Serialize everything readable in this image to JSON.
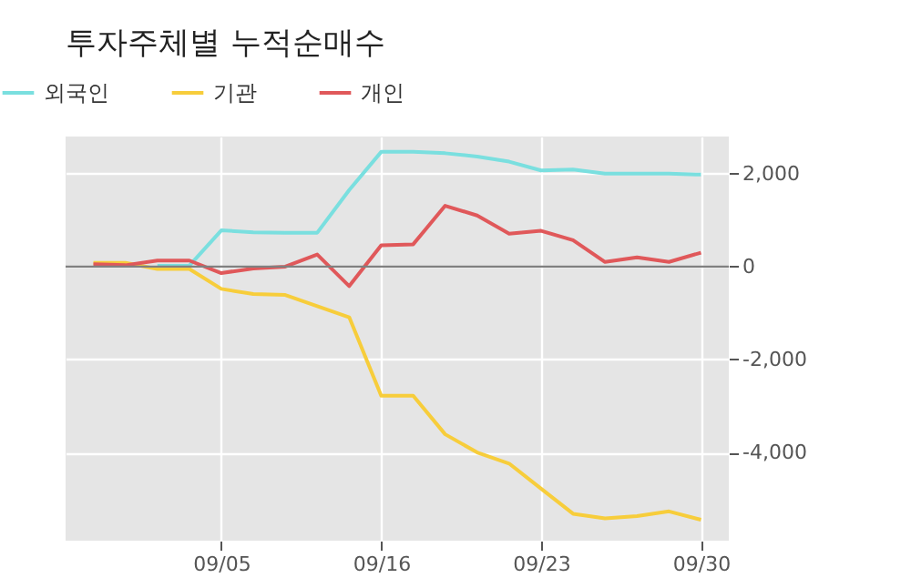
{
  "chart_data": {
    "type": "line",
    "title": "투자주체별 누적순매수",
    "categories": [
      null,
      null,
      null,
      null,
      "09/05",
      null,
      null,
      null,
      null,
      "09/16",
      null,
      null,
      null,
      null,
      "09/23",
      null,
      null,
      null,
      null,
      "09/30"
    ],
    "series": [
      {
        "name": "외국인",
        "color": "#7adfdf",
        "values": [
          null,
          null,
          20,
          20,
          780,
          740,
          730,
          730,
          1650,
          2470,
          2470,
          2440,
          2370,
          2260,
          2070,
          2090,
          2000,
          2000,
          2000,
          1980
        ]
      },
      {
        "name": "기관",
        "color": "#f7cd3b",
        "values": [
          80,
          80,
          -50,
          -50,
          -480,
          -590,
          -610,
          -850,
          -1090,
          -2780,
          -2780,
          -3610,
          -4000,
          -4240,
          -4780,
          -5320,
          -5420,
          -5370,
          -5270,
          -5450
        ]
      },
      {
        "name": "개인",
        "color": "#e0585a",
        "values": [
          50,
          30,
          130,
          130,
          -140,
          -40,
          0,
          260,
          -420,
          460,
          480,
          1310,
          1100,
          710,
          770,
          570,
          100,
          200,
          100,
          300
        ]
      }
    ],
    "ylim": [
      -5900,
      2800
    ],
    "yticks": [
      {
        "value": -4000,
        "label": "-4,000"
      },
      {
        "value": -2000,
        "label": "-2,000"
      },
      0,
      {
        "value": 2000,
        "label": "2,000"
      }
    ],
    "ref_lines": [
      {
        "axis": "y",
        "value": 0,
        "color": "#808080"
      }
    ],
    "grid": true,
    "legend": "top left",
    "line_style": "solid",
    "marker": "none"
  }
}
